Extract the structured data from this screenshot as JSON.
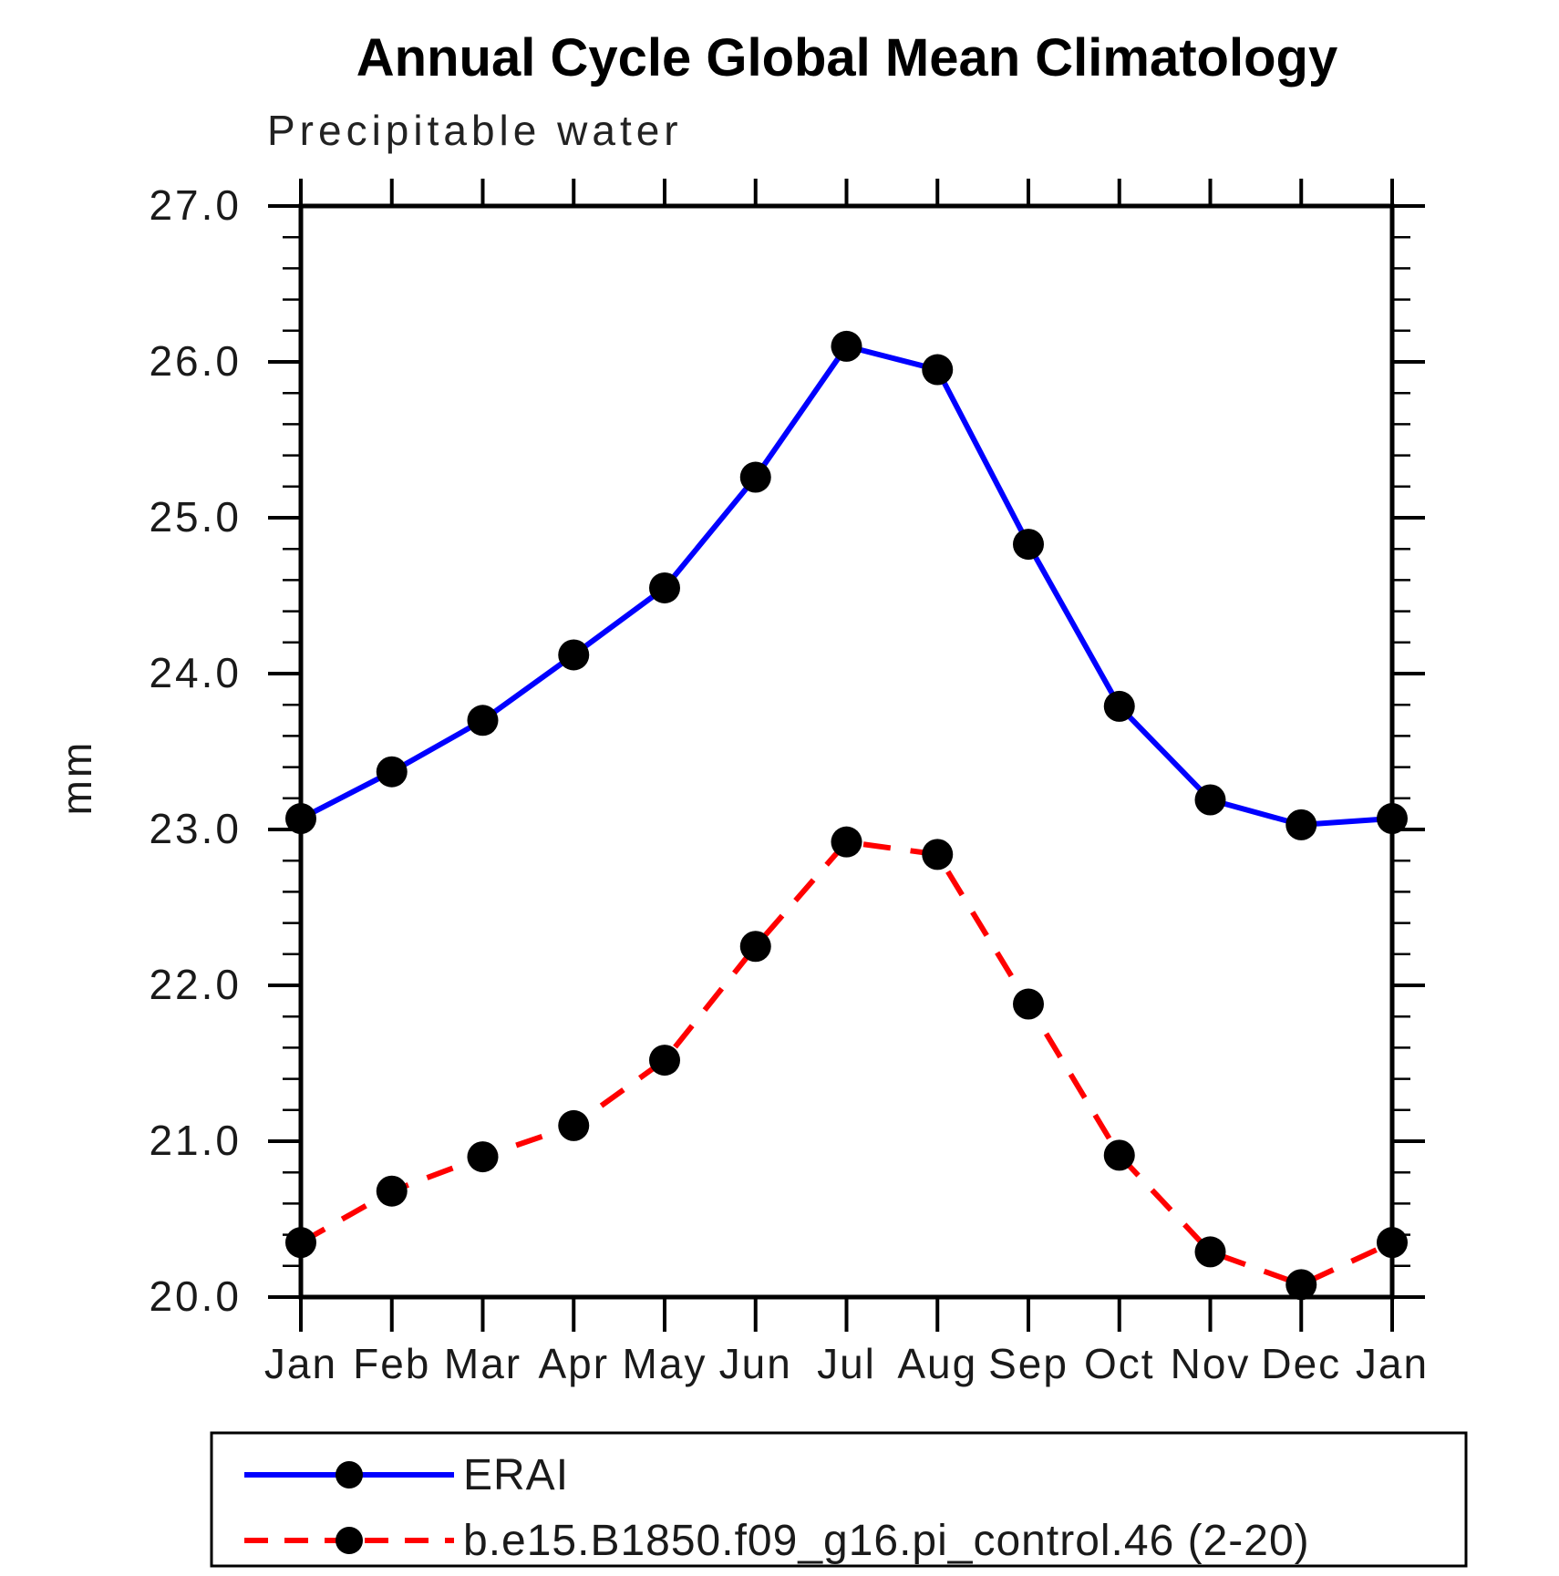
{
  "page": {
    "background": "#ffffff",
    "text_color": "#000000"
  },
  "chart_data": {
    "type": "line",
    "title": "Annual Cycle Global Mean Climatology",
    "subtitle": "Precipitable water",
    "ylabel": "mm",
    "xlabel": "",
    "categories": [
      "Jan",
      "Feb",
      "Mar",
      "Apr",
      "May",
      "Jun",
      "Jul",
      "Aug",
      "Sep",
      "Oct",
      "Nov",
      "Dec",
      "Jan"
    ],
    "ylim": [
      20.0,
      27.0
    ],
    "y_major_step": 1.0,
    "y_minor_step": 0.2,
    "y_tick_labels": [
      "20.0",
      "21.0",
      "22.0",
      "23.0",
      "24.0",
      "25.0",
      "26.0",
      "27.0"
    ],
    "grid": false,
    "legend_position": "bottom",
    "series": [
      {
        "name": "ERAI",
        "color": "#0000ff",
        "line_style": "solid",
        "marker": "circle",
        "marker_color": "#000000",
        "values": [
          23.07,
          23.37,
          23.7,
          24.12,
          24.55,
          25.26,
          26.1,
          25.95,
          24.83,
          23.79,
          23.19,
          23.03,
          23.07
        ]
      },
      {
        "name": "b.e15.B1850.f09_g16.pi_control.46 (2-20)",
        "color": "#ff0000",
        "line_style": "dashed",
        "marker": "circle",
        "marker_color": "#000000",
        "values": [
          20.35,
          20.68,
          20.9,
          21.1,
          21.52,
          22.25,
          22.92,
          22.84,
          21.88,
          20.91,
          20.29,
          20.08,
          20.35
        ]
      }
    ]
  }
}
